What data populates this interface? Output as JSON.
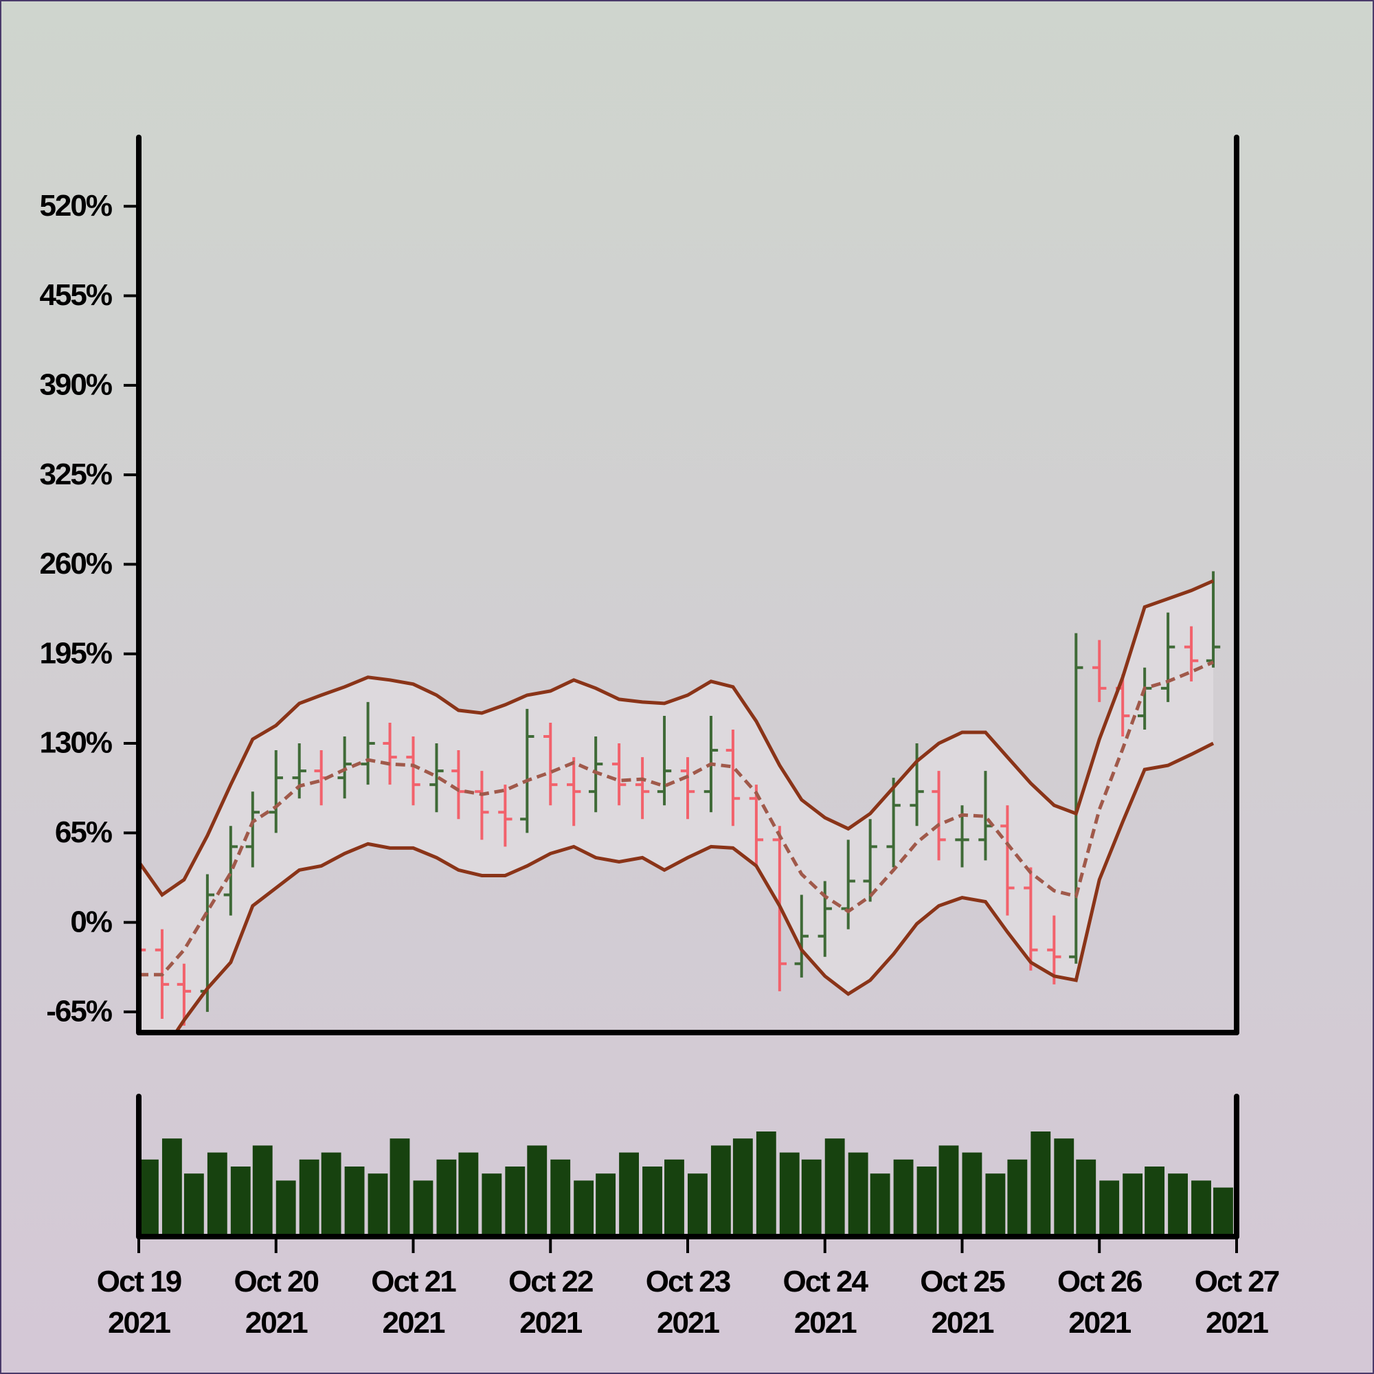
{
  "chart_data": {
    "type": "ohlc",
    "x": [
      0,
      0.17,
      0.33,
      0.5,
      0.67,
      0.83,
      1,
      1.17,
      1.33,
      1.5,
      1.67,
      1.83,
      2,
      2.17,
      2.33,
      2.5,
      2.67,
      2.83,
      3,
      3.17,
      3.33,
      3.5,
      3.67,
      3.83,
      4,
      4.17,
      4.33,
      4.5,
      4.67,
      4.83,
      5,
      5.17,
      5.33,
      5.5,
      5.67,
      5.83,
      6,
      6.17,
      6.33,
      6.5,
      6.67,
      6.83,
      7,
      7.17,
      7.33,
      7.5,
      7.67,
      7.83
    ],
    "open": [
      40,
      -20,
      -45,
      -50,
      20,
      55,
      80,
      105,
      110,
      105,
      115,
      130,
      120,
      100,
      110,
      95,
      80,
      75,
      135,
      100,
      95,
      115,
      100,
      95,
      110,
      95,
      125,
      90,
      60,
      -30,
      -10,
      10,
      30,
      55,
      85,
      95,
      60,
      60,
      70,
      25,
      -20,
      -25,
      185,
      170,
      150,
      170,
      200,
      190
    ],
    "high": [
      55,
      -5,
      -30,
      35,
      70,
      95,
      125,
      130,
      125,
      135,
      160,
      145,
      135,
      130,
      125,
      110,
      100,
      155,
      145,
      120,
      135,
      130,
      120,
      150,
      120,
      150,
      140,
      100,
      70,
      20,
      30,
      60,
      75,
      105,
      130,
      110,
      85,
      110,
      85,
      40,
      5,
      210,
      205,
      180,
      185,
      225,
      215,
      255
    ],
    "low": [
      -35,
      -70,
      -75,
      -65,
      5,
      40,
      65,
      90,
      85,
      90,
      100,
      100,
      85,
      80,
      75,
      60,
      55,
      65,
      85,
      70,
      80,
      85,
      75,
      85,
      75,
      80,
      70,
      40,
      -50,
      -40,
      -25,
      -5,
      15,
      40,
      70,
      45,
      40,
      45,
      5,
      -35,
      -45,
      -30,
      160,
      135,
      140,
      160,
      175,
      185
    ],
    "close": [
      -20,
      -45,
      -50,
      20,
      55,
      80,
      105,
      110,
      105,
      115,
      130,
      120,
      100,
      110,
      95,
      80,
      75,
      135,
      100,
      95,
      115,
      100,
      95,
      110,
      95,
      125,
      90,
      60,
      -30,
      -10,
      10,
      30,
      55,
      85,
      95,
      60,
      60,
      70,
      25,
      -20,
      -25,
      185,
      170,
      150,
      170,
      200,
      190,
      200
    ],
    "up_color": "#3f6a37",
    "down_color": "#f2626c",
    "bands": {
      "upper": [
        44,
        20,
        31,
        63,
        100,
        133,
        143,
        159,
        165,
        171,
        178,
        176,
        173,
        165,
        154,
        152,
        158,
        165,
        168,
        176,
        170,
        162,
        160,
        159,
        165,
        175,
        171,
        146,
        114,
        89,
        76,
        68,
        79,
        98,
        117,
        130,
        138,
        138,
        120,
        101,
        85,
        79,
        133,
        178,
        229,
        235,
        241,
        248
      ],
      "middle": [
        -38,
        -38,
        -20,
        8,
        36,
        73,
        84,
        99,
        103,
        111,
        118,
        115,
        114,
        106,
        96,
        93,
        96,
        103,
        109,
        116,
        109,
        103,
        104,
        99,
        106,
        115,
        113,
        94,
        63,
        35,
        19,
        8,
        19,
        38,
        58,
        71,
        78,
        77,
        57,
        36,
        23,
        19,
        82,
        126,
        170,
        175,
        182,
        189
      ],
      "lower": [
        -120,
        -95,
        -71,
        -48,
        -29,
        12,
        25,
        38,
        41,
        50,
        57,
        54,
        54,
        47,
        38,
        34,
        34,
        41,
        50,
        55,
        47,
        44,
        47,
        38,
        47,
        55,
        54,
        41,
        12,
        -20,
        -39,
        -52,
        -42,
        -23,
        -1,
        12,
        18,
        15,
        -7,
        -29,
        -39,
        -42,
        31,
        73,
        111,
        114,
        122,
        130
      ],
      "color": "#8a3418",
      "middle_color": "#a0594a",
      "fill": "#ddd9dd"
    },
    "volume": {
      "values": [
        55,
        70,
        45,
        60,
        50,
        65,
        40,
        55,
        60,
        50,
        45,
        70,
        40,
        55,
        60,
        45,
        50,
        65,
        55,
        40,
        45,
        60,
        50,
        55,
        45,
        65,
        70,
        75,
        60,
        55,
        70,
        60,
        45,
        55,
        50,
        65,
        60,
        45,
        55,
        75,
        70,
        55,
        40,
        45,
        50,
        45,
        40,
        35
      ],
      "color": "#17420f",
      "ylim": [
        0,
        100
      ]
    },
    "xlim": [
      0,
      8
    ],
    "xticks": [
      {
        "value": 0,
        "label": "Oct 19\n2021"
      },
      {
        "value": 1,
        "label": "Oct 20\n2021"
      },
      {
        "value": 2,
        "label": "Oct 21\n2021"
      },
      {
        "value": 3,
        "label": "Oct 22\n2021"
      },
      {
        "value": 4,
        "label": "Oct 23\n2021"
      },
      {
        "value": 5,
        "label": "Oct 24\n2021"
      },
      {
        "value": 6,
        "label": "Oct 25\n2021"
      },
      {
        "value": 7,
        "label": "Oct 26\n2021"
      },
      {
        "value": 8,
        "label": "Oct 27\n2021"
      }
    ],
    "ylim": [
      -80,
      570
    ],
    "yticks": [
      {
        "value": -65,
        "label": "-65%"
      },
      {
        "value": 0,
        "label": "0%"
      },
      {
        "value": 65,
        "label": "65%"
      },
      {
        "value": 130,
        "label": "130%"
      },
      {
        "value": 195,
        "label": "195%"
      },
      {
        "value": 260,
        "label": "260%"
      },
      {
        "value": 325,
        "label": "325%"
      },
      {
        "value": 390,
        "label": "390%"
      },
      {
        "value": 455,
        "label": "455%"
      },
      {
        "value": 520,
        "label": "520%"
      }
    ]
  }
}
